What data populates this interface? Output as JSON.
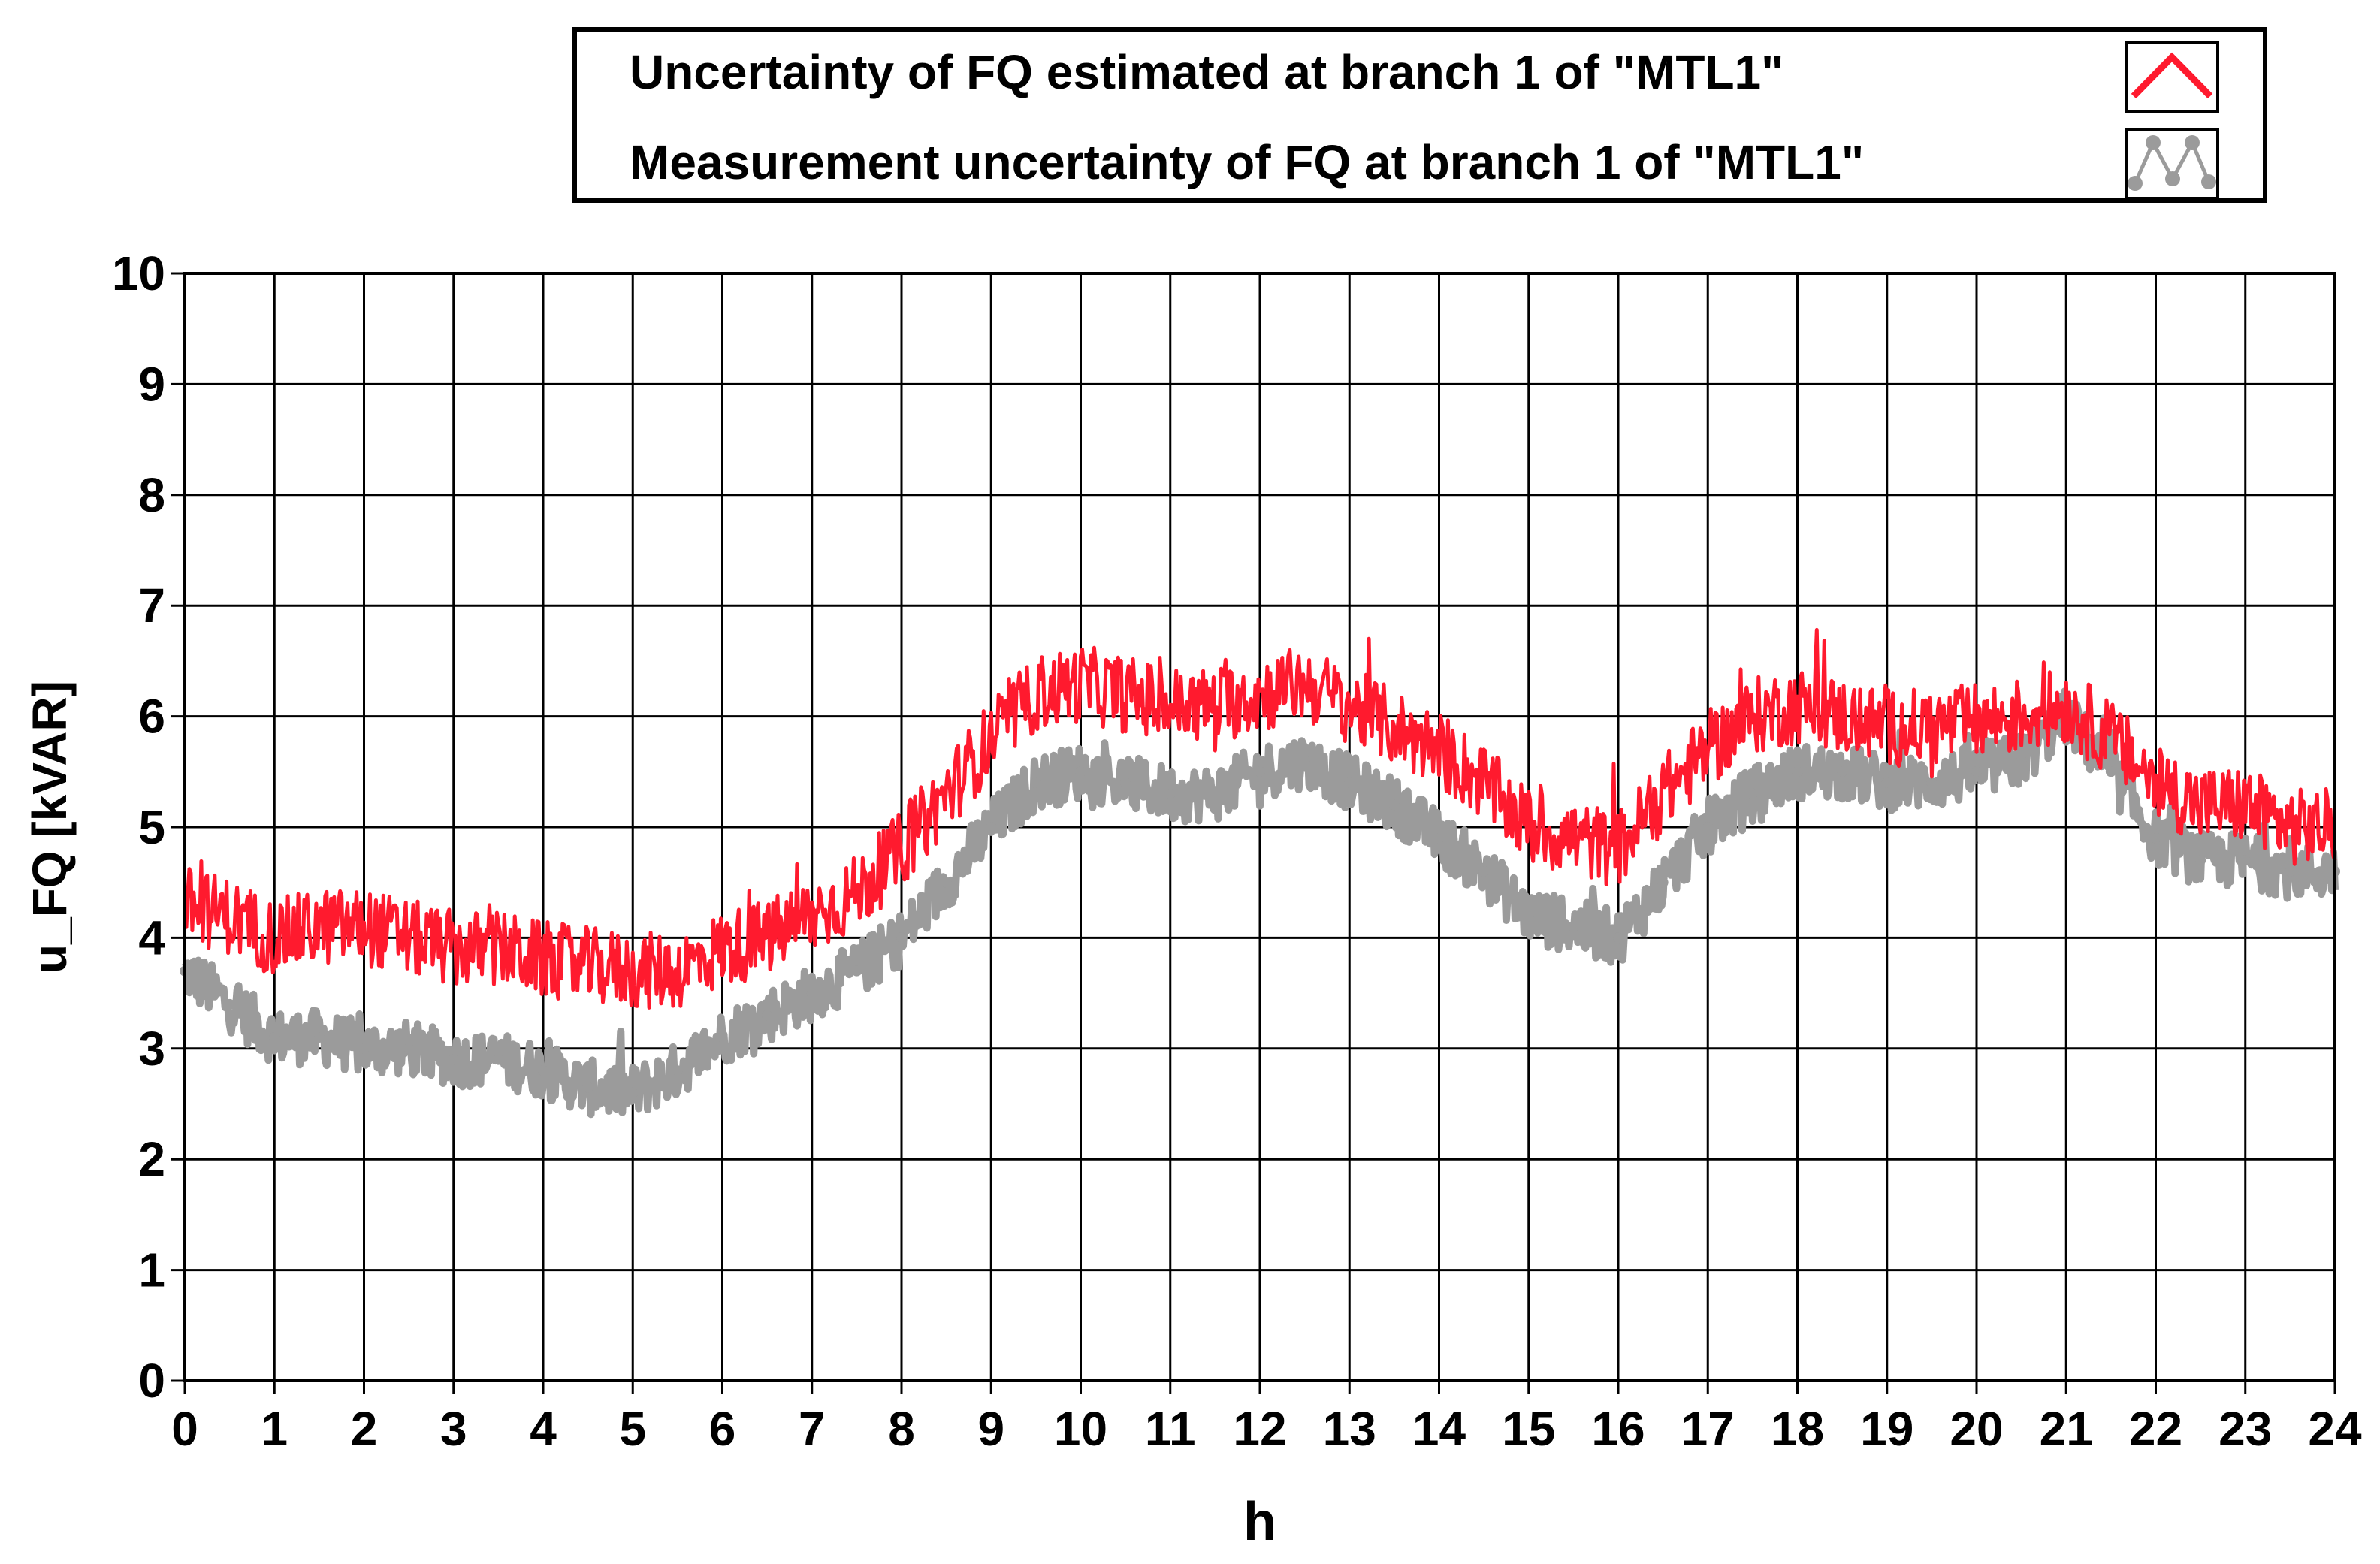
{
  "chart_data": {
    "type": "line",
    "xlabel": "h",
    "ylabel": "u_FQ [kVAR]",
    "xlim": [
      0,
      24
    ],
    "ylim": [
      0,
      10
    ],
    "xticks": [
      "0",
      "1",
      "2",
      "3",
      "4",
      "5",
      "6",
      "7",
      "8",
      "9",
      "10",
      "11",
      "12",
      "13",
      "14",
      "15",
      "16",
      "17",
      "18",
      "19",
      "20",
      "21",
      "22",
      "23",
      "24"
    ],
    "yticks": [
      "0",
      "1",
      "2",
      "3",
      "4",
      "5",
      "6",
      "7",
      "8",
      "9",
      "10"
    ],
    "grid": true,
    "legend_position": "top",
    "series": [
      {
        "name": "Uncertainty of FQ estimated at branch 1 of \"MTL1\"",
        "color": "#ff1a2e",
        "marker": "none",
        "x": [
          0,
          0.5,
          1,
          1.5,
          2,
          2.5,
          3,
          3.5,
          4,
          4.5,
          5,
          5.5,
          6,
          6.5,
          7,
          7.5,
          8,
          8.5,
          9,
          9.5,
          10,
          10.5,
          11,
          11.5,
          12,
          12.5,
          13,
          13.5,
          14,
          14.5,
          15,
          15.5,
          16,
          16.5,
          17,
          17.5,
          18,
          18.5,
          19,
          19.5,
          20,
          20.5,
          21,
          21.5,
          22,
          22.5,
          23,
          23.5,
          24
        ],
        "y": [
          4.3,
          4.2,
          4.0,
          4.1,
          4.1,
          4.0,
          3.9,
          3.9,
          3.8,
          3.75,
          3.7,
          3.7,
          3.9,
          4.0,
          4.2,
          4.4,
          4.8,
          5.3,
          5.8,
          6.2,
          6.3,
          6.2,
          6.1,
          6.1,
          6.2,
          6.3,
          6.1,
          5.9,
          5.7,
          5.4,
          5.0,
          4.9,
          4.8,
          5.3,
          5.7,
          6.0,
          6.1,
          6.0,
          5.9,
          5.9,
          5.95,
          6.0,
          6.1,
          5.8,
          5.4,
          5.2,
          5.2,
          5.0,
          5.0
        ],
        "noise": 0.35
      },
      {
        "name": "Measurement uncertainty of FQ at branch 1 of \"MTL1\"",
        "color": "#9b9b9b",
        "marker": "circle",
        "x": [
          0,
          0.5,
          1,
          1.5,
          2,
          2.5,
          3,
          3.5,
          4,
          4.5,
          5,
          5.5,
          6,
          6.5,
          7,
          7.5,
          8,
          8.5,
          9,
          9.5,
          10,
          10.5,
          11,
          11.5,
          12,
          12.5,
          13,
          13.5,
          14,
          14.5,
          15,
          15.5,
          16,
          16.5,
          17,
          17.5,
          18,
          18.5,
          19,
          19.5,
          20,
          20.5,
          21,
          21.5,
          22,
          22.5,
          23,
          23.5,
          24
        ],
        "y": [
          3.7,
          3.4,
          3.1,
          3.1,
          3.0,
          3.0,
          2.9,
          2.9,
          2.8,
          2.65,
          2.6,
          2.8,
          3.1,
          3.3,
          3.5,
          3.7,
          4.0,
          4.5,
          5.0,
          5.4,
          5.5,
          5.4,
          5.3,
          5.3,
          5.5,
          5.6,
          5.4,
          5.2,
          4.9,
          4.6,
          4.2,
          4.1,
          4.0,
          4.5,
          5.0,
          5.3,
          5.5,
          5.5,
          5.4,
          5.4,
          5.5,
          5.6,
          6.0,
          5.5,
          4.9,
          4.7,
          4.7,
          4.6,
          4.6
        ],
        "noise": 0.25
      }
    ]
  },
  "legend": {
    "items": [
      {
        "label": "Uncertainty of FQ estimated at branch 1 of \"MTL1\"",
        "color": "#ff1a2e"
      },
      {
        "label": "Measurement uncertainty of FQ at branch 1 of \"MTL1\"",
        "color": "#9b9b9b"
      }
    ]
  }
}
